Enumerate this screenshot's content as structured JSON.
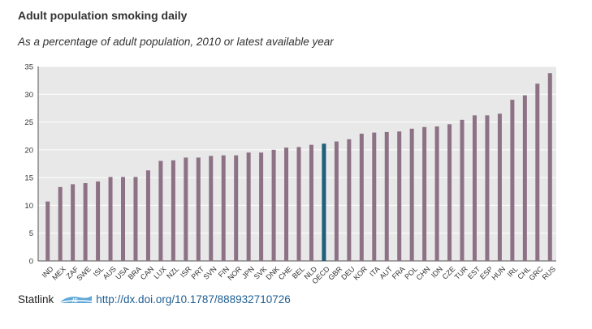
{
  "header": {
    "title": "Adult population smoking daily",
    "subtitle": "As a percentage of adult population, 2010 or latest available year"
  },
  "footer": {
    "statlink_label": "Statlink",
    "doi": "http://dx.doi.org/10.1787/888932710726"
  },
  "colors": {
    "bar": "#8c7284",
    "highlight": "#1f5f7a",
    "plot_bg": "#e8e8e8",
    "grid": "#ffffff",
    "link": "#1e5e93"
  },
  "icons": {
    "statlink": "statlink-logo-icon"
  },
  "chart_data": {
    "type": "bar",
    "title": "Adult population smoking daily",
    "subtitle": "As a percentage of adult population, 2010 or latest available year",
    "categories": [
      "IND",
      "MEX",
      "ZAF",
      "SWE",
      "ISL",
      "AUS",
      "USA",
      "BRA",
      "CAN",
      "LUX",
      "NZL",
      "ISR",
      "PRT",
      "SVN",
      "FIN",
      "NOR",
      "JPN",
      "SVK",
      "DNK",
      "CHE",
      "BEL",
      "NLD",
      "OECD",
      "GBR",
      "DEU",
      "KOR",
      "ITA",
      "AUT",
      "FRA",
      "POL",
      "CHN",
      "IDN",
      "CZE",
      "TUR",
      "EST",
      "ESP",
      "HUN",
      "IRL",
      "CHL",
      "GRC",
      "RUS"
    ],
    "values": [
      10.7,
      13.3,
      13.8,
      14.0,
      14.3,
      15.1,
      15.1,
      15.1,
      16.3,
      18.0,
      18.1,
      18.6,
      18.6,
      18.9,
      19.0,
      19.0,
      19.5,
      19.5,
      20.0,
      20.4,
      20.5,
      20.9,
      21.1,
      21.5,
      21.9,
      22.9,
      23.1,
      23.2,
      23.3,
      23.8,
      24.1,
      24.2,
      24.6,
      25.4,
      26.2,
      26.2,
      26.5,
      29.0,
      29.8,
      31.9,
      33.8
    ],
    "highlight_category": "OECD",
    "xlabel": "",
    "ylabel": "",
    "ylim": [
      0,
      35
    ],
    "yticks": [
      0,
      5,
      10,
      15,
      20,
      25,
      30,
      35
    ],
    "grid": true,
    "legend": "none"
  }
}
